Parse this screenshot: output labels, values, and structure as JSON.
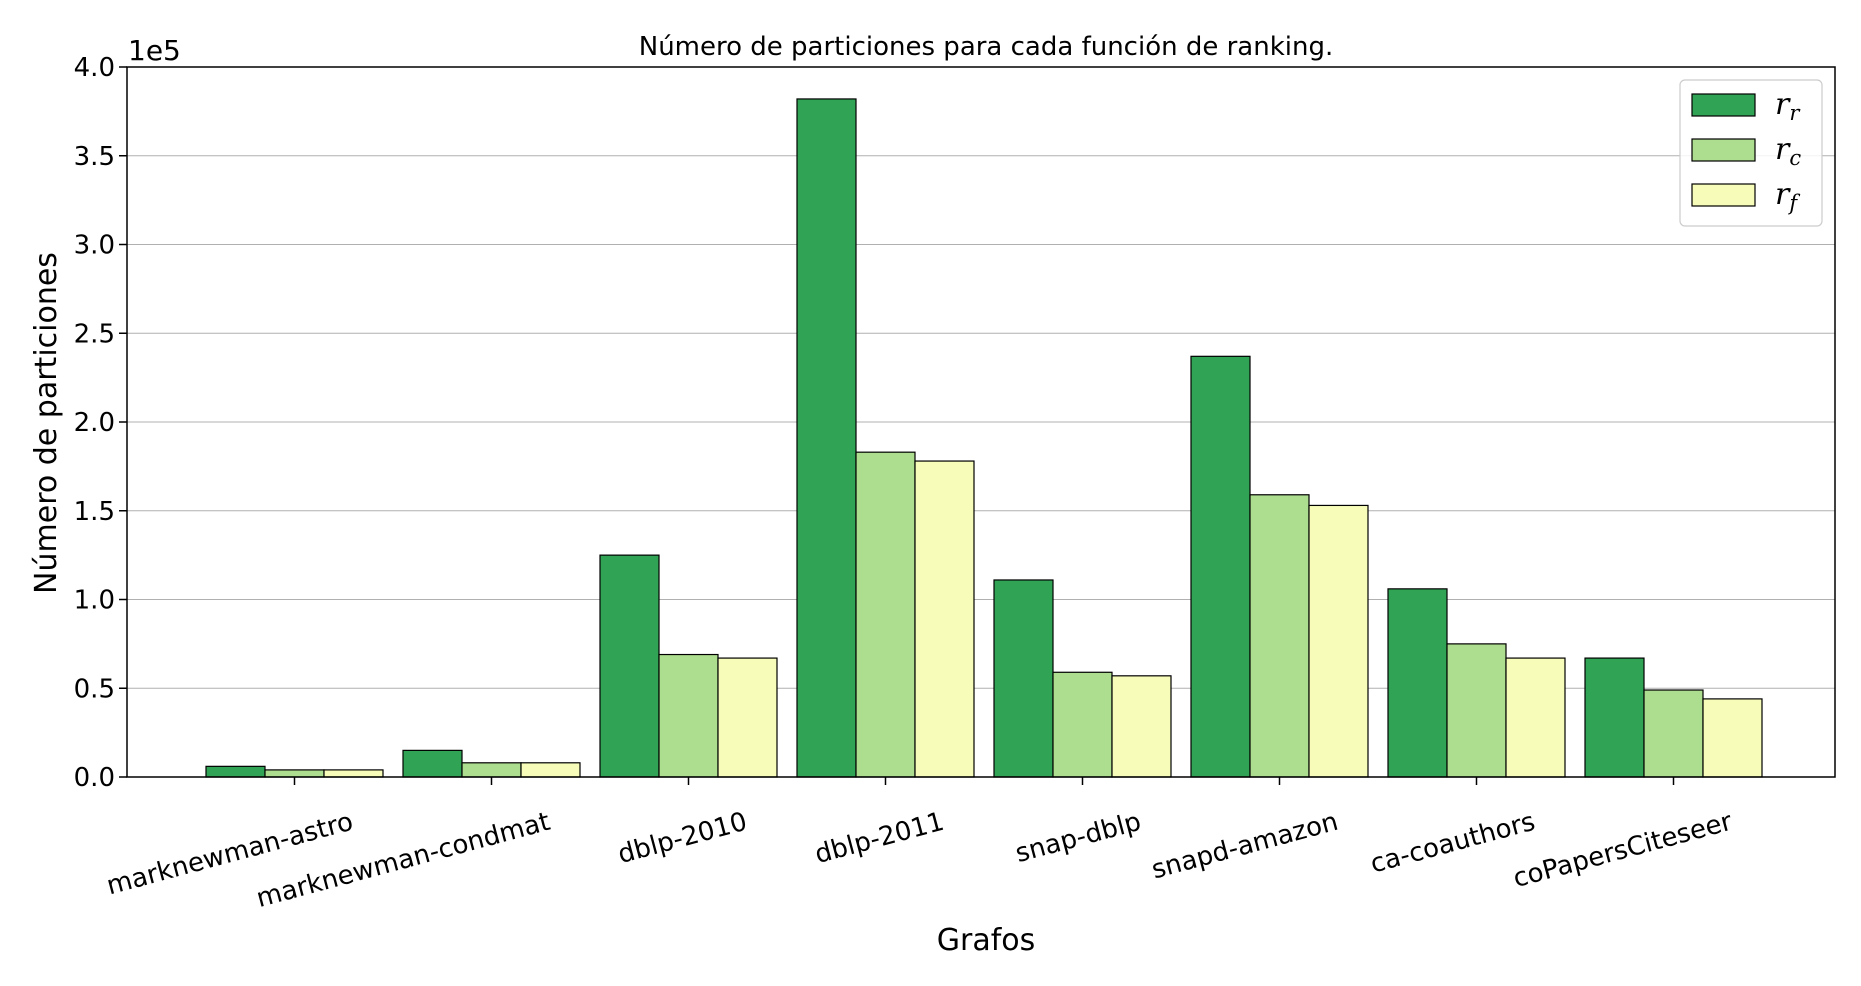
{
  "chart_data": {
    "type": "bar",
    "title": "Número de particiones para cada función de ranking.",
    "xlabel": "Grafos",
    "ylabel": "Número de particiones",
    "y_offset_label": "1e5",
    "ylim": [
      0,
      4.0
    ],
    "yticks": [
      "0.0",
      "0.5",
      "1.0",
      "1.5",
      "2.0",
      "2.5",
      "3.0",
      "3.5",
      "4.0"
    ],
    "grid": "horizontal",
    "legend_position": "top-right",
    "categories": [
      "marknewman-astro",
      "marknewman-condmat",
      "dblp-2010",
      "dblp-2011",
      "snap-dblp",
      "snapd-amazon",
      "ca-coauthors",
      "coPapersCiteseer"
    ],
    "series": [
      {
        "name": "r",
        "subscript": "r",
        "color": "#31a354",
        "values": [
          0.06,
          0.15,
          1.25,
          3.82,
          1.11,
          2.37,
          1.06,
          0.67
        ]
      },
      {
        "name": "r",
        "subscript": "c",
        "color": "#addd8e",
        "values": [
          0.04,
          0.08,
          0.69,
          1.83,
          0.59,
          1.59,
          0.75,
          0.49
        ]
      },
      {
        "name": "r",
        "subscript": "f",
        "color": "#f7fcb9",
        "values": [
          0.04,
          0.08,
          0.67,
          1.78,
          0.57,
          1.53,
          0.67,
          0.44
        ]
      }
    ]
  }
}
